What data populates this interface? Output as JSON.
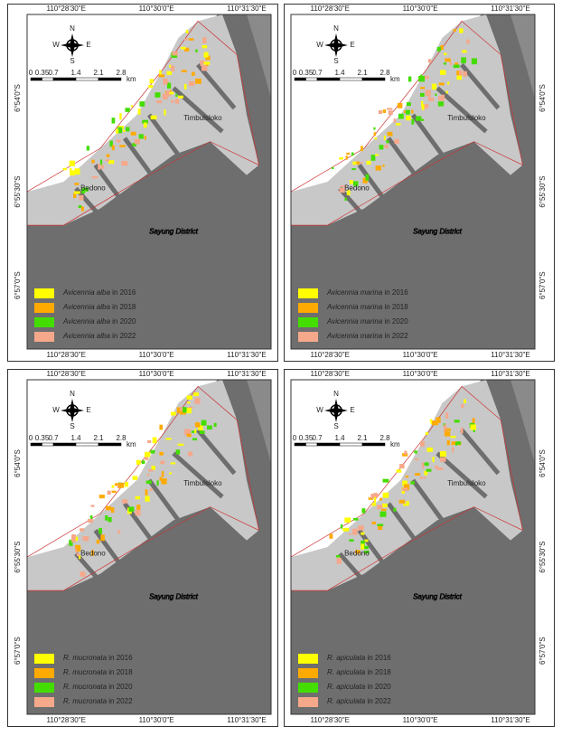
{
  "lon_labels": [
    "110°28'30\"E",
    "110°30'0\"E",
    "110°31'30\"E"
  ],
  "lat_labels": [
    "6°54'0\"S",
    "6°55'30\"S",
    "6°57'0\"S"
  ],
  "compass": [
    "N",
    "S",
    "W",
    "E"
  ],
  "scale_labels": [
    "0",
    "0.35",
    "0.7",
    "1.4",
    "2.1",
    "2.8",
    "km"
  ],
  "places": {
    "village_north": "Timbulsloko",
    "village_south": "Bedono",
    "district": "Sayung District"
  },
  "panels": [
    {
      "legend": [
        {
          "species": "Avicennia alba",
          "period": "in 2016",
          "color": "#ffff00"
        },
        {
          "species": "Avicennia alba",
          "period": "in 2018",
          "color": "#ffaa00"
        },
        {
          "species": "Avicennia alba",
          "period": "in 2020",
          "color": "#44dd00"
        },
        {
          "species": "Avicennia alba",
          "period": "in 2022",
          "color": "#f5a88a"
        }
      ]
    },
    {
      "legend": [
        {
          "species": "Avicennia marina",
          "period": "in 2016",
          "color": "#ffff00"
        },
        {
          "species": "Avicennia marina",
          "period": "in 2018",
          "color": "#ffaa00"
        },
        {
          "species": "Avicennia marina",
          "period": "in 2020",
          "color": "#44dd00"
        },
        {
          "species": "Avicennia marina",
          "period": "in 2022",
          "color": "#f5a88a"
        }
      ]
    },
    {
      "legend": [
        {
          "species": "R. mucronata",
          "period": "in 2016",
          "color": "#ffff00"
        },
        {
          "species": "R. mucronata",
          "period": "in 2018",
          "color": "#ffaa00"
        },
        {
          "species": "R. mucronata",
          "period": "in 2020",
          "color": "#44dd00"
        },
        {
          "species": "R. mucronata",
          "period": "in 2022",
          "color": "#f5a88a"
        }
      ]
    },
    {
      "legend": [
        {
          "species": "R. apiculata",
          "period": "in 2016",
          "color": "#ffff00"
        },
        {
          "species": "R. apiculata",
          "period": "in 2018",
          "color": "#ffaa00"
        },
        {
          "species": "R. apiculata",
          "period": "in 2020",
          "color": "#44dd00"
        },
        {
          "species": "R. apiculata",
          "period": "in 2022",
          "color": "#f5a88a"
        }
      ]
    }
  ]
}
